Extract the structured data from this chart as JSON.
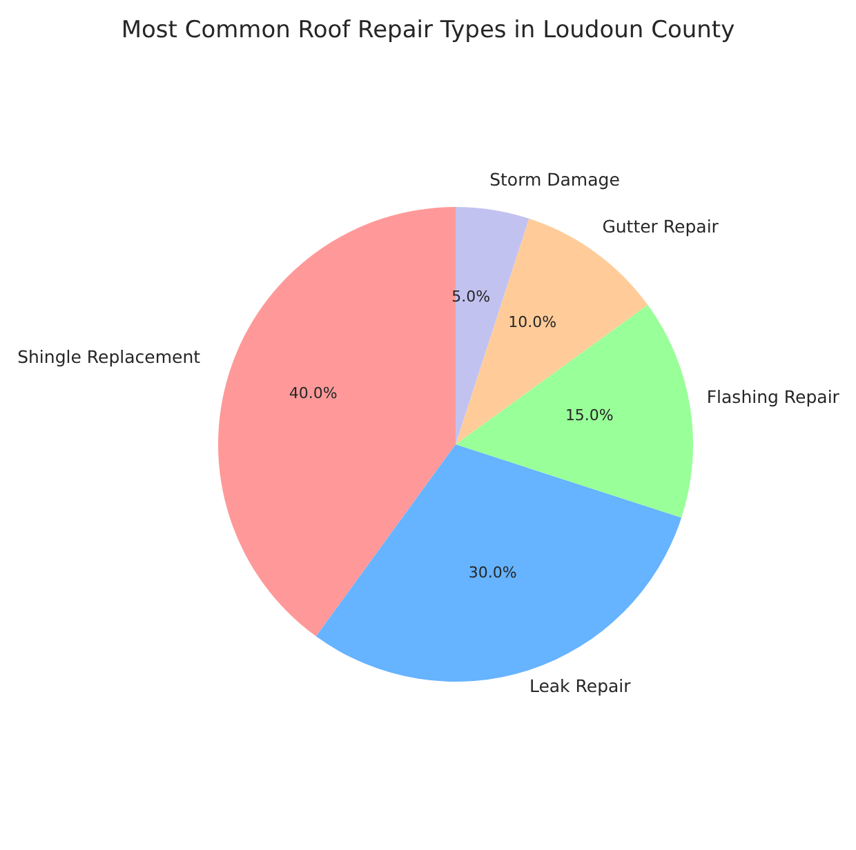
{
  "chart_data": {
    "type": "pie",
    "title": "Most Common Roof Repair Types in Loudoun County",
    "categories": [
      "Shingle Replacement",
      "Leak Repair",
      "Flashing Repair",
      "Gutter Repair",
      "Storm Damage"
    ],
    "values": [
      40,
      30,
      15,
      10,
      5
    ],
    "colors": [
      "#ff9999",
      "#66b3ff",
      "#99ff99",
      "#ffcc99",
      "#c2c2f0"
    ],
    "value_labels": [
      "40.0%",
      "30.0%",
      "15.0%",
      "10.0%",
      "5.0%"
    ],
    "legend": false
  }
}
